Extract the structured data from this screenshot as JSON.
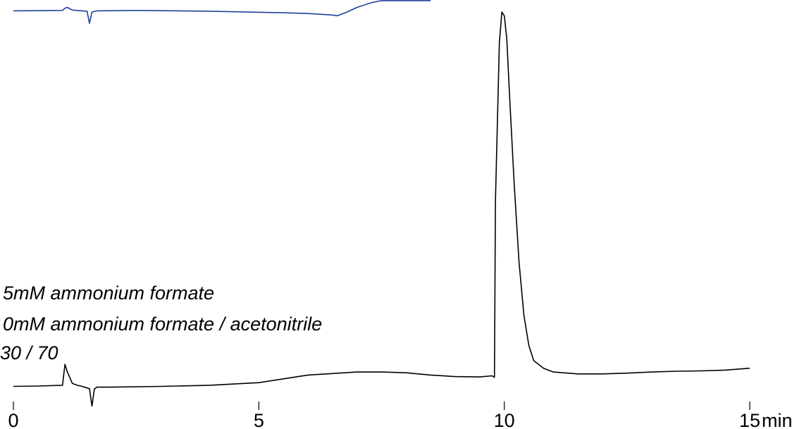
{
  "chart_data": {
    "type": "line",
    "title": "",
    "xlabel": "",
    "ylabel": "",
    "xlim": [
      0,
      15
    ],
    "ylim": [
      0,
      1
    ],
    "grid": false,
    "x_ticks": [
      {
        "value": 0,
        "label": "0"
      },
      {
        "value": 5,
        "label": "5"
      },
      {
        "value": 10,
        "label": "10"
      },
      {
        "value": 15,
        "label": "15"
      }
    ],
    "x_unit": "min",
    "annotations": [
      "5mM ammonium formate",
      "0mM ammonium formate / acetonitrile",
      "30 / 70"
    ],
    "series": [
      {
        "color": "#1e3f9a",
        "x": [
          0,
          1.0,
          1.05,
          1.1,
          1.2,
          1.4,
          1.5,
          1.55,
          1.6,
          1.7,
          2.5,
          4.0,
          5.5,
          6.0,
          6.5,
          6.6,
          6.8,
          7.0,
          7.3,
          7.5,
          7.8,
          8.0,
          8.3,
          8.5
        ],
        "y": [
          1.003,
          1.004,
          1.01,
          1.012,
          1.005,
          1.003,
          1.002,
          0.97,
          1.0,
          1.003,
          1.004,
          1.002,
          0.998,
          0.996,
          0.992,
          0.99,
          1.0,
          1.012,
          1.025,
          1.03,
          1.03,
          1.03,
          1.03,
          1.03
        ]
      },
      {
        "color": "#000000",
        "x": [
          0,
          0.5,
          1.0,
          1.05,
          1.1,
          1.2,
          1.3,
          1.4,
          1.55,
          1.6,
          1.65,
          1.7,
          2.0,
          3.0,
          4.0,
          5.0,
          5.5,
          6.0,
          7.0,
          7.5,
          8.0,
          8.5,
          9.0,
          9.5,
          9.75,
          9.8,
          9.82,
          9.9,
          9.95,
          10.0,
          10.05,
          10.1,
          10.2,
          10.3,
          10.4,
          10.5,
          10.6,
          10.8,
          11.0,
          11.5,
          12.0,
          12.5,
          13.0,
          13.5,
          14.0,
          14.5,
          15.0
        ],
        "y": [
          0.012,
          0.013,
          0.015,
          0.07,
          0.05,
          0.02,
          0.015,
          0.012,
          0.006,
          -0.04,
          0.005,
          0.01,
          0.01,
          0.012,
          0.015,
          0.022,
          0.032,
          0.042,
          0.05,
          0.05,
          0.048,
          0.042,
          0.038,
          0.037,
          0.04,
          0.036,
          0.5,
          0.92,
          1.0,
          0.99,
          0.93,
          0.8,
          0.55,
          0.34,
          0.2,
          0.12,
          0.08,
          0.06,
          0.05,
          0.045,
          0.045,
          0.047,
          0.05,
          0.052,
          0.053,
          0.055,
          0.06
        ]
      }
    ]
  }
}
